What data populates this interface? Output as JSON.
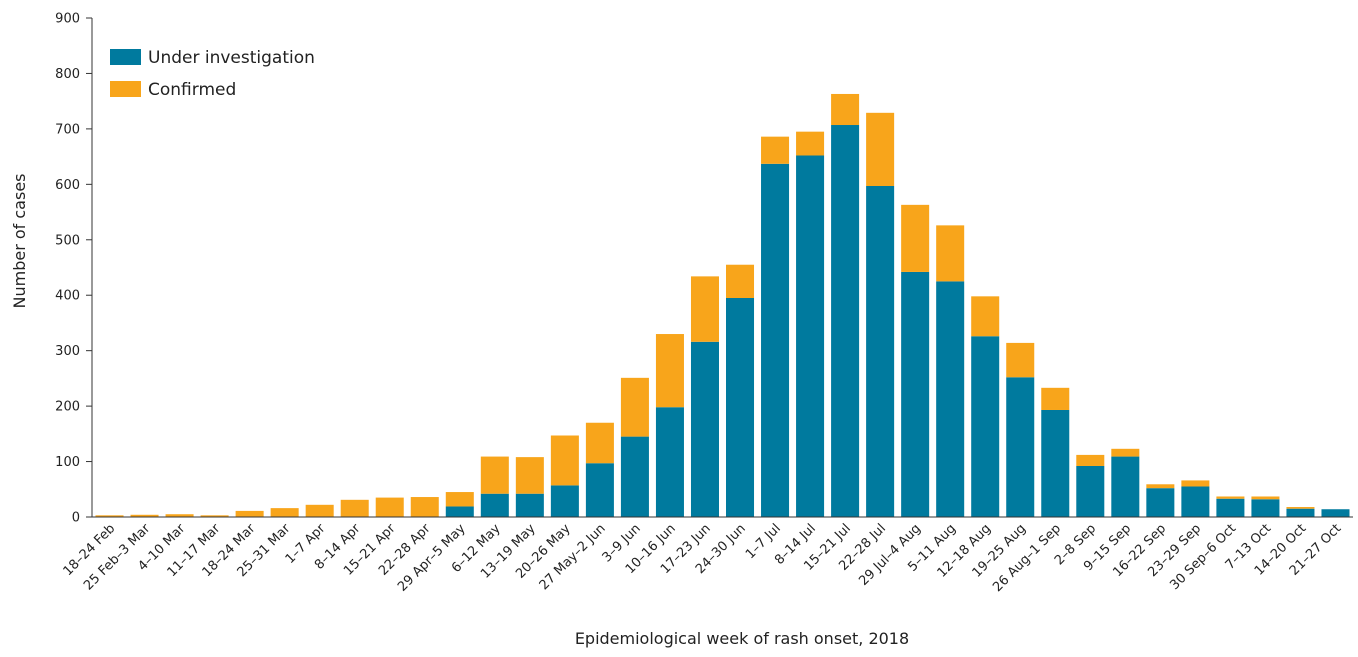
{
  "chart_data": {
    "type": "bar",
    "stacked": true,
    "title": "",
    "xlabel": "Epidemiological week of rash onset, 2018",
    "ylabel": "Number of cases",
    "ylim": [
      0,
      900
    ],
    "yticks": [
      0,
      100,
      200,
      300,
      400,
      500,
      600,
      700,
      800,
      900
    ],
    "grid": false,
    "legend_position": "top-left",
    "categories": [
      "18–24 Feb",
      "25 Feb–3 Mar",
      "4–10 Mar",
      "11–17 Mar",
      "18–24 Mar",
      "25–31 Mar",
      "1–7 Apr",
      "8–14 Apr",
      "15–21 Apr",
      "22–28 Apr",
      "29 Apr–5 May",
      "6–12 May",
      "13–19 May",
      "20–26 May",
      "27 May–2 Jun",
      "3–9 Jun",
      "10–16 Jun",
      "17–23 Jun",
      "24–30 Jun",
      "1–7 Jul",
      "8–14 Jul",
      "15–21 Jul",
      "22–28 Jul",
      "29 Jul–4 Aug",
      "5–11 Aug",
      "12–18 Aug",
      "19–25 Aug",
      "26 Aug–1 Sep",
      "2–8 Sep",
      "9–15 Sep",
      "16–22 Sep",
      "23–29 Sep",
      "30 Sep–6 Oct",
      "7–13 Oct",
      "14–20 Oct",
      "21–27 Oct"
    ],
    "series": [
      {
        "name": "Under investigation",
        "color": "#007a9e",
        "values": [
          0,
          0,
          0,
          0,
          0,
          0,
          0,
          0,
          0,
          0,
          19,
          42,
          42,
          57,
          97,
          145,
          198,
          316,
          395,
          637,
          652,
          707,
          597,
          442,
          425,
          326,
          252,
          193,
          92,
          109,
          52,
          55,
          33,
          32,
          15,
          14
        ]
      },
      {
        "name": "Confirmed",
        "color": "#f8a51b",
        "values": [
          3,
          4,
          5,
          3,
          11,
          16,
          22,
          31,
          35,
          36,
          26,
          67,
          66,
          90,
          73,
          106,
          132,
          118,
          60,
          49,
          43,
          56,
          132,
          121,
          101,
          72,
          62,
          40,
          20,
          14,
          7,
          11,
          4,
          5,
          3,
          0
        ]
      }
    ]
  }
}
